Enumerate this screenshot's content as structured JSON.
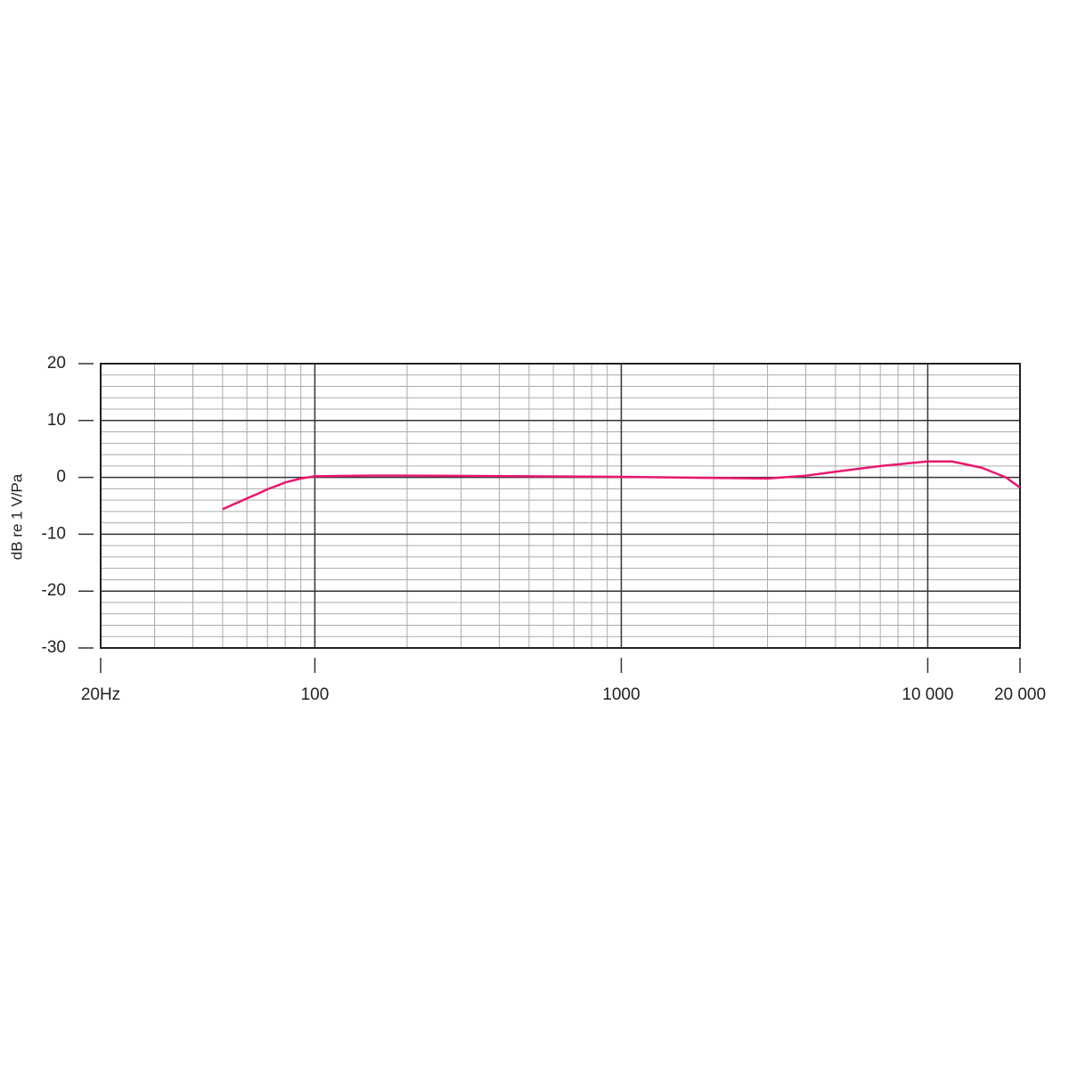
{
  "chart_data": {
    "type": "line",
    "ylabel": "dB re 1 V/Pa",
    "x": [
      50,
      55,
      60,
      65,
      70,
      75,
      80,
      90,
      100,
      150,
      200,
      500,
      1000,
      2000,
      3000,
      4000,
      5000,
      7000,
      10000,
      12000,
      15000,
      18000,
      20000
    ],
    "values": [
      -5.6,
      -4.6,
      -3.7,
      -2.9,
      -2.1,
      -1.5,
      -0.9,
      -0.2,
      0.2,
      0.3,
      0.3,
      0.2,
      0.1,
      -0.1,
      -0.2,
      0.3,
      1.0,
      2.0,
      2.8,
      2.8,
      1.7,
      0.0,
      -1.8
    ],
    "color": "#e8176f",
    "xscale": "log",
    "xlim": [
      20,
      20000
    ],
    "ylim": [
      -30,
      20
    ],
    "xticks": [
      {
        "value": 20,
        "label": "20Hz"
      },
      100,
      1000,
      {
        "value": 10000,
        "label": "10 000"
      },
      {
        "value": 20000,
        "label": "20 000"
      }
    ],
    "yticks": [
      20,
      10,
      0,
      -10,
      -20
    ],
    "yticks_bottom": [
      -30
    ],
    "x_minor_grid": [
      30,
      40,
      50,
      60,
      70,
      80,
      90,
      200,
      300,
      400,
      500,
      600,
      700,
      800,
      900,
      2000,
      3000,
      4000,
      5000,
      6000,
      7000,
      8000,
      9000
    ],
    "y_minor_grid": [
      18,
      16,
      14,
      12,
      8,
      6,
      4,
      2,
      -2,
      -4,
      -6,
      -8,
      -12,
      -14,
      -16,
      -18,
      -22,
      -24,
      -26,
      -28
    ],
    "grid": true
  }
}
